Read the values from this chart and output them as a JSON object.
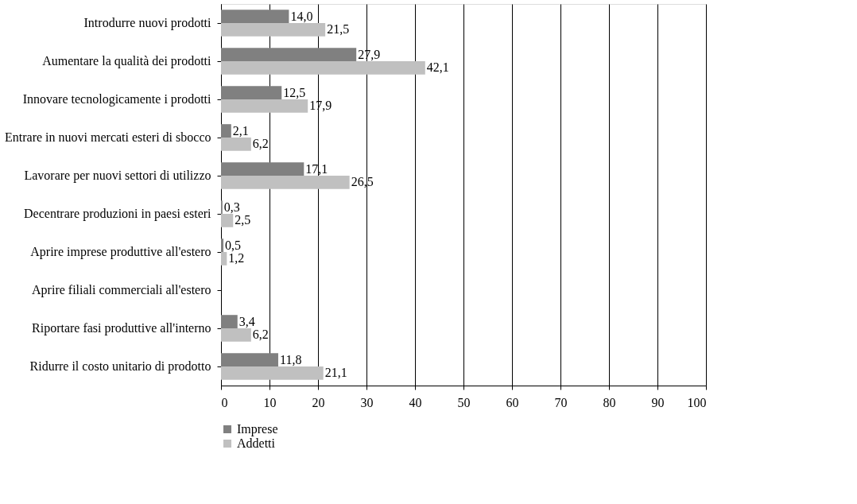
{
  "chart_data": {
    "type": "bar",
    "orientation": "horizontal",
    "categories": [
      "Introdurre nuovi prodotti",
      "Aumentare la qualità dei prodotti",
      "Innovare tecnologicamente i prodotti",
      "Entrare in nuovi mercati esteri di sbocco",
      "Lavorare per nuovi settori di utilizzo",
      "Decentrare produzioni in paesi esteri",
      "Aprire imprese produttive all'estero",
      "Aprire filiali commerciali all'estero",
      "Riportare fasi produttive all'interno",
      "Ridurre il costo unitario di prodotto"
    ],
    "series": [
      {
        "name": "Imprese",
        "color": "#808080",
        "values": [
          14.0,
          27.9,
          12.5,
          2.1,
          17.1,
          0.3,
          0.5,
          null,
          3.4,
          11.8
        ],
        "value_labels": [
          "14,0",
          "27,9",
          "12,5",
          "2,1",
          "17,1",
          "0,3",
          "0,5",
          null,
          "3,4",
          "11,8"
        ]
      },
      {
        "name": "Addetti",
        "color": "#c0c0c0",
        "values": [
          21.5,
          42.1,
          17.9,
          6.2,
          26.5,
          2.5,
          1.2,
          null,
          6.2,
          21.1
        ],
        "value_labels": [
          "21,5",
          "42,1",
          "17,9",
          "6,2",
          "26,5",
          "2,5",
          "1,2",
          null,
          "6,2",
          "21,1"
        ]
      }
    ],
    "xlim": [
      0,
      100
    ],
    "xticks": [
      0,
      10,
      20,
      30,
      40,
      50,
      60,
      70,
      80,
      90,
      100
    ],
    "grid": "x",
    "legend": "bottom"
  }
}
